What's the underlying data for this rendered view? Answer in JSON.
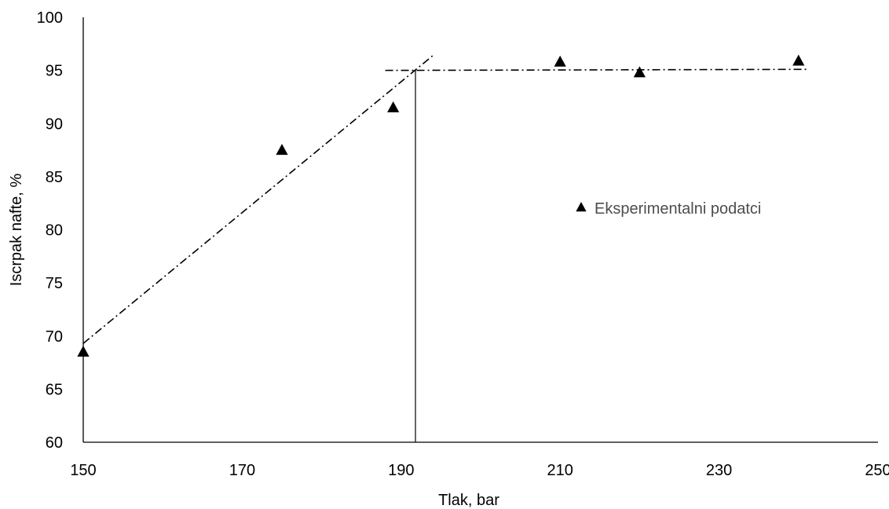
{
  "chart_data": {
    "type": "scatter",
    "xlabel": "Tlak, bar",
    "ylabel": "Iscrpak nafte, %",
    "xlim": [
      150,
      250
    ],
    "ylim": [
      60,
      100
    ],
    "xticks": [
      150,
      170,
      190,
      210,
      230,
      250
    ],
    "yticks": [
      60,
      65,
      70,
      75,
      80,
      85,
      90,
      95,
      100
    ],
    "grid": false,
    "legend_position": "right-middle",
    "series": [
      {
        "name": "Eksperimentalni podatci",
        "marker": "triangle",
        "color": "#000000",
        "x": [
          150,
          175,
          189,
          210,
          220,
          240
        ],
        "y": [
          68.5,
          87.5,
          91.5,
          95.8,
          94.8,
          95.9
        ]
      }
    ],
    "trend_lines": [
      {
        "style": "dash-dot",
        "color": "#000000",
        "x": [
          150,
          194
        ],
        "y": [
          69.3,
          96.4
        ]
      },
      {
        "style": "dash-dot",
        "color": "#000000",
        "x": [
          188,
          241
        ],
        "y": [
          95.0,
          95.1
        ]
      }
    ],
    "vertical_marker": {
      "x": 191.8,
      "y_from": 60,
      "y_to": 95.0
    }
  }
}
